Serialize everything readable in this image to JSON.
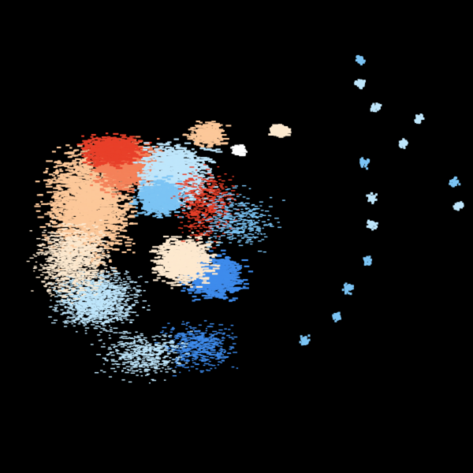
{
  "background": "#000000",
  "palette": {
    "strong_outbound": "#e8402a",
    "outbound": "#f4825a",
    "weak_outbound": "#fcc89a",
    "near_zero": "#fde9cf",
    "weak_inbound": "#bfe6fb",
    "inbound": "#7cc4f4",
    "strong_inbound": "#3f8cec"
  }
}
